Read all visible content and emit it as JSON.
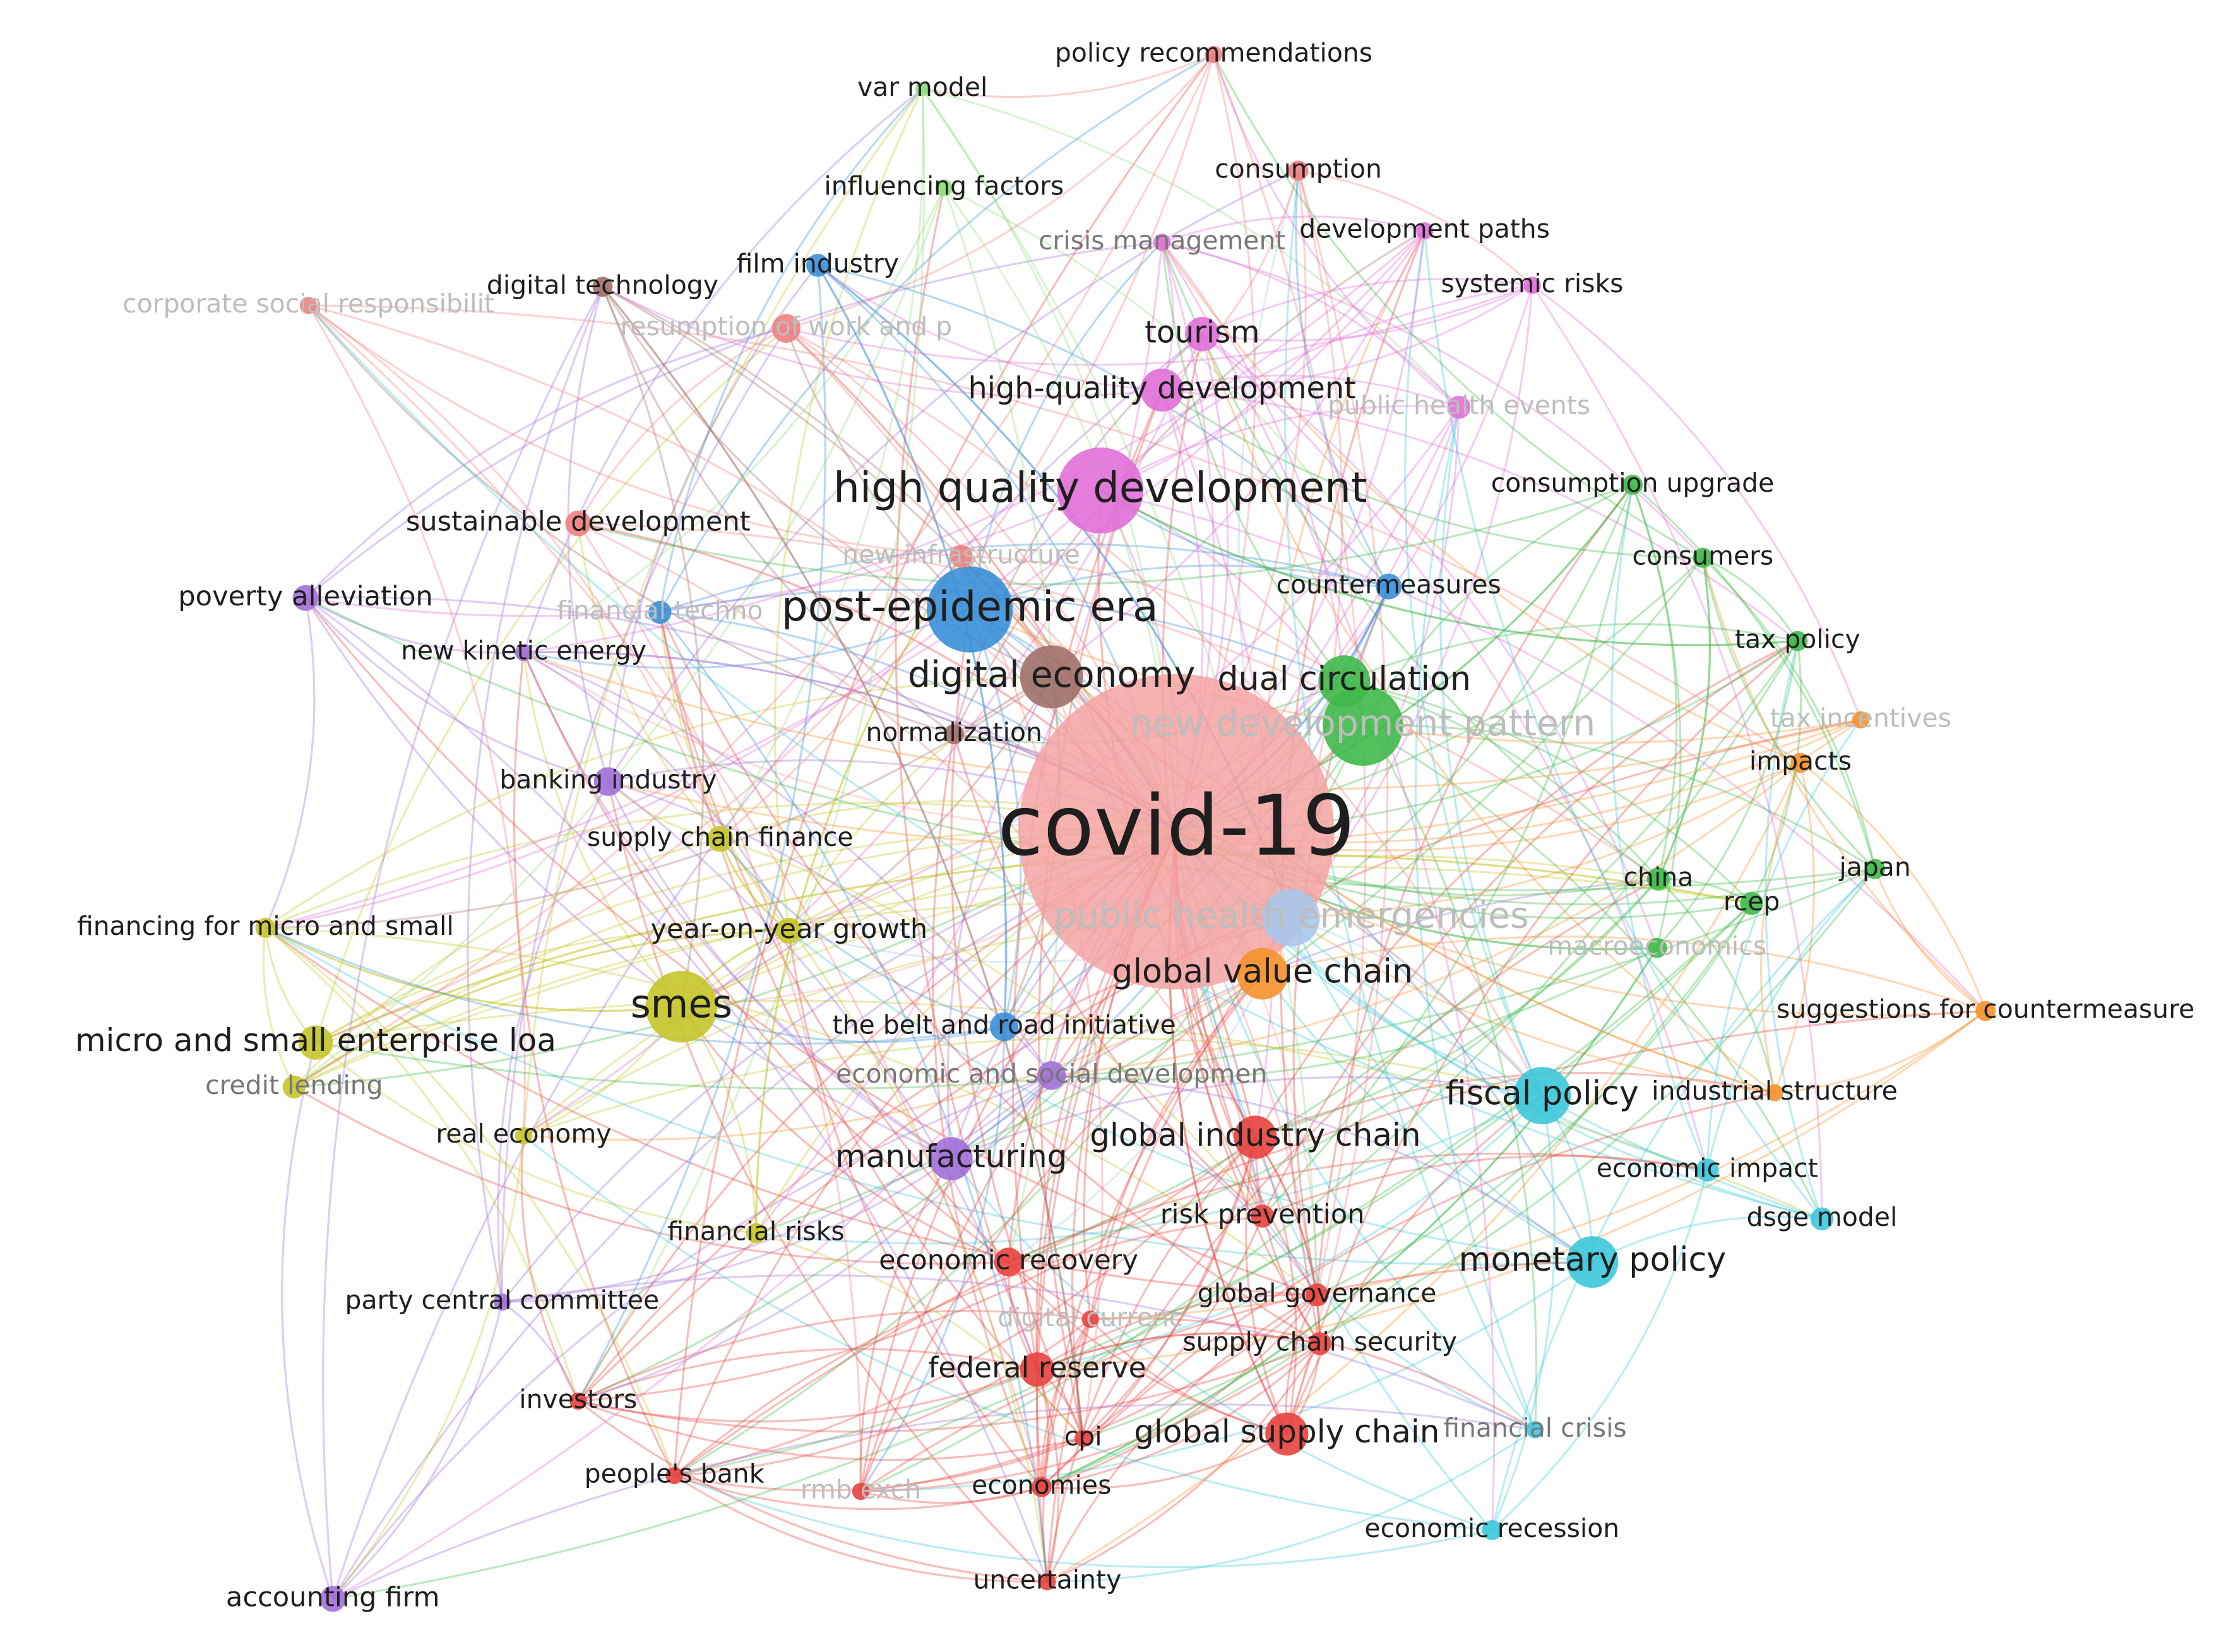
{
  "nodes": [
    {
      "label": "covid-19",
      "color": "#f4a3a3"
    },
    {
      "label": "high quality development",
      "color": "#e070d8"
    },
    {
      "label": "post-epidemic era",
      "color": "#3a8fd8"
    },
    {
      "label": "digital economy",
      "color": "#a0706a"
    },
    {
      "label": "dual circulation",
      "color": "#3fb94a"
    },
    {
      "label": "new development pattern",
      "color": "#3fb94a"
    },
    {
      "label": "public health emergencies",
      "color": "#a8c8ec"
    },
    {
      "label": "global value chain",
      "color": "#f5922e"
    },
    {
      "label": "smes",
      "color": "#c5c52a"
    },
    {
      "label": "micro and small enterprise loa",
      "color": "#c5c52a"
    },
    {
      "label": "fiscal policy",
      "color": "#3cc8dc"
    },
    {
      "label": "monetary policy",
      "color": "#3cc8dc"
    },
    {
      "label": "global industry chain",
      "color": "#e8433f"
    },
    {
      "label": "manufacturing",
      "color": "#a070d8"
    },
    {
      "label": "global supply chain",
      "color": "#e8433f"
    },
    {
      "label": "federal reserve",
      "color": "#e8433f"
    },
    {
      "label": "economic recovery",
      "color": "#e8433f"
    },
    {
      "label": "risk prevention",
      "color": "#e8433f"
    },
    {
      "label": "global governance",
      "color": "#e8433f"
    },
    {
      "label": "supply chain security",
      "color": "#e8433f"
    },
    {
      "label": "financial crisis",
      "color": "#3cc8dc"
    },
    {
      "label": "economic recession",
      "color": "#3cc8dc"
    },
    {
      "label": "uncertainty",
      "color": "#e8433f"
    },
    {
      "label": "economies",
      "color": "#e8433f"
    },
    {
      "label": "cpi",
      "color": "#e8433f"
    },
    {
      "label": "people's bank",
      "color": "#e8433f"
    },
    {
      "label": "investors",
      "color": "#e8433f"
    },
    {
      "label": "party central committee",
      "color": "#a070d8"
    },
    {
      "label": "accounting firm",
      "color": "#a070d8"
    },
    {
      "label": "financial risks",
      "color": "#c5c52a"
    },
    {
      "label": "real economy",
      "color": "#c5c52a"
    },
    {
      "label": "credit lending",
      "color": "#c5c52a"
    },
    {
      "label": "financing for micro and small",
      "color": "#c5c52a"
    },
    {
      "label": "year-on-year growth",
      "color": "#c5c52a"
    },
    {
      "label": "supply chain finance",
      "color": "#c5c52a"
    },
    {
      "label": "banking industry",
      "color": "#a070d8"
    },
    {
      "label": "new kinetic energy",
      "color": "#a070d8"
    },
    {
      "label": "poverty alleviation",
      "color": "#a070d8"
    },
    {
      "label": "sustainable development",
      "color": "#f08080"
    },
    {
      "label": "financial techno",
      "color": "#3a8fd8"
    },
    {
      "label": "normalization",
      "color": "#a0706a"
    },
    {
      "label": "new infrastructure",
      "color": "#f08080"
    },
    {
      "label": "film industry",
      "color": "#3a8fd8"
    },
    {
      "label": "digital technology",
      "color": "#a0706a"
    },
    {
      "label": "corporate social responsibilit",
      "color": "#f08080"
    },
    {
      "label": "var model",
      "color": "#90dc80"
    },
    {
      "label": "policy recommendations",
      "color": "#f08080"
    },
    {
      "label": "influencing factors",
      "color": "#90dc80"
    },
    {
      "label": "consumption",
      "color": "#f08080"
    },
    {
      "label": "crisis management",
      "color": "#e070d8"
    },
    {
      "label": "development paths",
      "color": "#e070d8"
    },
    {
      "label": "systemic risks",
      "color": "#e070d8"
    },
    {
      "label": "tourism",
      "color": "#e070d8"
    },
    {
      "label": "high-quality development",
      "color": "#e070d8"
    },
    {
      "label": "public health events",
      "color": "#e070d8"
    },
    {
      "label": "consumption upgrade",
      "color": "#3fb94a"
    },
    {
      "label": "consumers",
      "color": "#3fb94a"
    },
    {
      "label": "countermeasures",
      "color": "#3a8fd8"
    },
    {
      "label": "tax policy",
      "color": "#3fb94a"
    },
    {
      "label": "tax incentives",
      "color": "#f5922e"
    },
    {
      "label": "impacts",
      "color": "#f5922e"
    },
    {
      "label": "japan",
      "color": "#3fb94a"
    },
    {
      "label": "china",
      "color": "#3fb94a"
    },
    {
      "label": "rcep",
      "color": "#3fb94a"
    },
    {
      "label": "macroeconomics",
      "color": "#3fb94a"
    },
    {
      "label": "suggestions for countermeasure",
      "color": "#f5922e"
    },
    {
      "label": "industrial structure",
      "color": "#f5922e"
    },
    {
      "label": "economic impact",
      "color": "#3cc8dc"
    },
    {
      "label": "dsge model",
      "color": "#3cc8dc"
    },
    {
      "label": "the belt and road initiative",
      "color": "#3a8fd8"
    },
    {
      "label": "economic and social developmen",
      "color": "#a070d8"
    },
    {
      "label": "resumption of work and p",
      "color": "#f08080"
    },
    {
      "label": "digital currenc",
      "color": "#e8433f"
    },
    {
      "label": "rmb exch",
      "color": "#e8433f"
    }
  ]
}
